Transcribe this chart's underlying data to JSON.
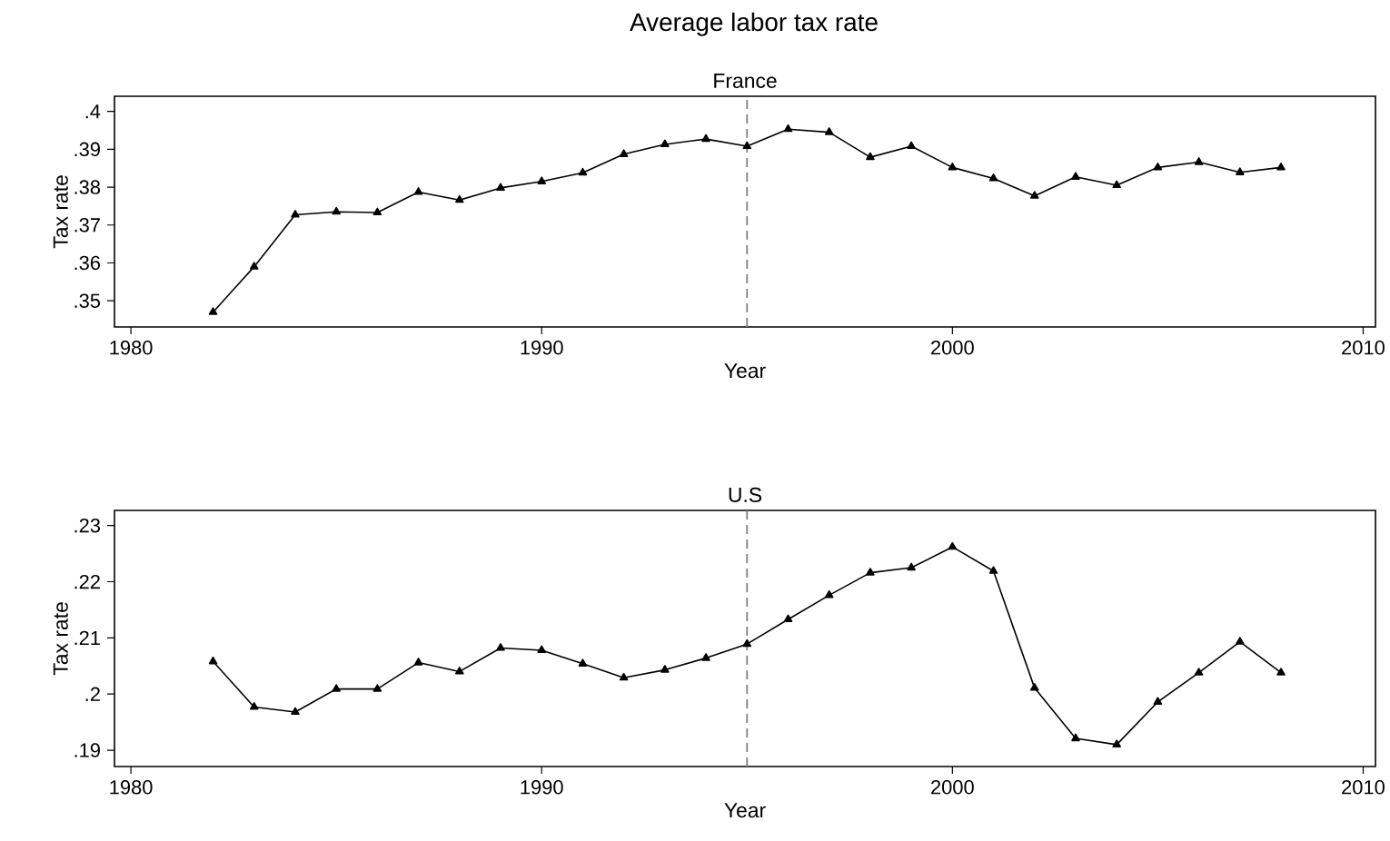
{
  "chart_data": [
    {
      "type": "line",
      "title": "Average labor tax rate",
      "subtitle": "France",
      "xlabel": "Year",
      "ylabel": "Tax rate",
      "x": [
        1982,
        1983,
        1984,
        1985,
        1986,
        1987,
        1988,
        1989,
        1990,
        1991,
        1992,
        1993,
        1994,
        1995,
        1996,
        1997,
        1998,
        1999,
        2000,
        2001,
        2002,
        2003,
        2004,
        2005,
        2006,
        2007,
        2008
      ],
      "series": [
        {
          "color": "#000000",
          "values": [
            0.347,
            0.359,
            0.3727,
            0.3735,
            0.3733,
            0.3787,
            0.3766,
            0.3798,
            0.3815,
            0.3838,
            0.3887,
            0.3913,
            0.3927,
            0.3908,
            0.3953,
            0.3945,
            0.3879,
            0.3908,
            0.3852,
            0.3823,
            0.3777,
            0.3827,
            0.3805,
            0.3852,
            0.3866,
            0.3839,
            0.3852
          ]
        }
      ],
      "xlim": [
        1979.6,
        2010.3
      ],
      "ylim": [
        0.3431,
        0.404
      ],
      "xticks": [
        1980,
        1990,
        2000,
        2010
      ],
      "yticks": [
        {
          "value": 0.35,
          "label": ".35"
        },
        {
          "value": 0.36,
          "label": ".36"
        },
        {
          "value": 0.37,
          "label": ".37"
        },
        {
          "value": 0.38,
          "label": ".38"
        },
        {
          "value": 0.39,
          "label": ".39"
        },
        {
          "value": 0.4,
          "label": ".4"
        }
      ],
      "ref_lines": [
        {
          "axis": "x",
          "value": 1995,
          "color": "#808080",
          "line_style": "dashed"
        }
      ],
      "grid": false,
      "marker": "triangle",
      "line_style": "solid"
    },
    {
      "type": "line",
      "title": "U.S",
      "xlabel": "Year",
      "ylabel": "Tax rate",
      "x": [
        1982,
        1983,
        1984,
        1985,
        1986,
        1987,
        1988,
        1989,
        1990,
        1991,
        1992,
        1993,
        1994,
        1995,
        1996,
        1997,
        1998,
        1999,
        2000,
        2001,
        2002,
        2003,
        2004,
        2005,
        2006,
        2007,
        2008
      ],
      "series": [
        {
          "color": "#000000",
          "values": [
            0.2058,
            0.1977,
            0.1968,
            0.2009,
            0.2009,
            0.2056,
            0.204,
            0.2082,
            0.2078,
            0.2054,
            0.2029,
            0.2043,
            0.2064,
            0.2089,
            0.2133,
            0.2176,
            0.2216,
            0.2225,
            0.2262,
            0.2219,
            0.2011,
            0.1921,
            0.191,
            0.1986,
            0.2038,
            0.2093,
            0.2038
          ]
        }
      ],
      "xlim": [
        1979.6,
        2010.3
      ],
      "ylim": [
        0.1871,
        0.2327
      ],
      "xticks": [
        1980,
        1990,
        2000,
        2010
      ],
      "yticks": [
        {
          "value": 0.19,
          "label": ".19"
        },
        {
          "value": 0.2,
          "label": ".2"
        },
        {
          "value": 0.21,
          "label": ".21"
        },
        {
          "value": 0.22,
          "label": ".22"
        },
        {
          "value": 0.23,
          "label": ".23"
        }
      ],
      "ref_lines": [
        {
          "axis": "x",
          "value": 1995,
          "color": "#808080",
          "line_style": "dashed"
        }
      ],
      "grid": false,
      "marker": "triangle",
      "line_style": "solid"
    }
  ]
}
